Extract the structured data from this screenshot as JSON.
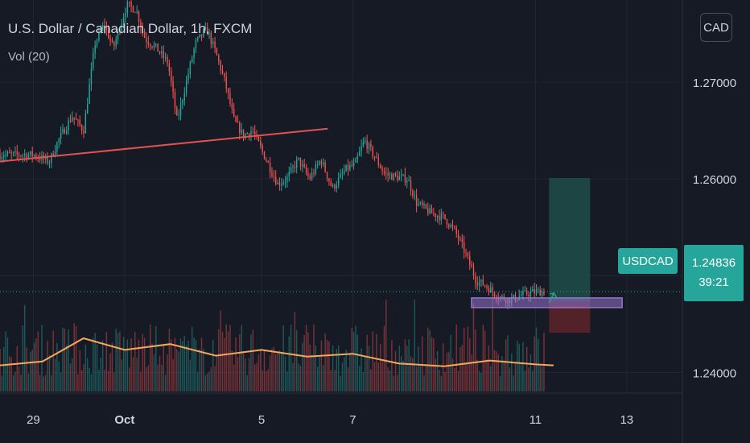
{
  "header": {
    "title": "U.S. Dollar / Canadian Dollar, 1h, FXCM",
    "volume_indicator": "Vol (20)",
    "currency_button": "CAD"
  },
  "price_marker": {
    "ticker": "USDCAD",
    "price": "1.24836",
    "countdown": "39:21"
  },
  "colors": {
    "background": "#161a25",
    "grid": "#232632",
    "up": "#26a69a",
    "down": "#ef5350",
    "trendline": "#e05353",
    "volume_ma": "#f5a85b",
    "support_zone": "#9575cd",
    "target_zone": "#1f4d4a",
    "stop_zone": "#5a2329"
  },
  "chart_data": {
    "type": "candlestick",
    "symbol": "USDCAD",
    "interval": "1h",
    "source": "FXCM",
    "currency": "CAD",
    "y_ticks": [
      "1.27000",
      "1.26000",
      "1.25000",
      "1.24000"
    ],
    "ylim": [
      1.2327,
      1.2785
    ],
    "x_ticks": [
      "29",
      "Oct",
      "5",
      "7",
      "11",
      "13"
    ],
    "x_range_days": [
      -0.73,
      14.22
    ],
    "last_price": 1.24836,
    "price_path_keyframes": [
      [
        0.0,
        1.2625
      ],
      [
        0.35,
        1.2618
      ],
      [
        0.55,
        1.264
      ],
      [
        0.85,
        1.2665
      ],
      [
        1.1,
        1.265
      ],
      [
        1.35,
        1.274
      ],
      [
        1.55,
        1.276
      ],
      [
        1.75,
        1.2735
      ],
      [
        2.05,
        1.278
      ],
      [
        2.25,
        1.2775
      ],
      [
        2.45,
        1.2745
      ],
      [
        2.7,
        1.2735
      ],
      [
        2.95,
        1.272
      ],
      [
        3.15,
        1.266
      ],
      [
        3.35,
        1.27
      ],
      [
        3.55,
        1.274
      ],
      [
        3.8,
        1.2755
      ],
      [
        4.0,
        1.273
      ],
      [
        4.2,
        1.27
      ],
      [
        4.4,
        1.266
      ],
      [
        4.6,
        1.2645
      ],
      [
        4.8,
        1.265
      ],
      [
        5.1,
        1.262
      ],
      [
        5.35,
        1.2595
      ],
      [
        5.55,
        1.26
      ],
      [
        5.8,
        1.262
      ],
      [
        6.05,
        1.26
      ],
      [
        6.3,
        1.262
      ],
      [
        6.55,
        1.259
      ],
      [
        6.85,
        1.261
      ],
      [
        7.05,
        1.2615
      ],
      [
        7.25,
        1.264
      ],
      [
        7.45,
        1.2625
      ],
      [
        7.7,
        1.2605
      ],
      [
        7.95,
        1.2602
      ],
      [
        8.2,
        1.26
      ],
      [
        8.4,
        1.2575
      ],
      [
        8.7,
        1.2565
      ],
      [
        9.0,
        1.256
      ],
      [
        9.25,
        1.2545
      ],
      [
        9.45,
        1.2525
      ],
      [
        9.7,
        1.2495
      ],
      [
        9.9,
        1.249
      ],
      [
        10.2,
        1.2478
      ],
      [
        10.45,
        1.2475
      ],
      [
        10.7,
        1.248
      ],
      [
        10.95,
        1.2483
      ],
      [
        11.2,
        1.24836
      ]
    ],
    "trendline": {
      "from": [
        -0.73,
        1.2618
      ],
      "to": [
        6.45,
        1.2652
      ]
    },
    "support_zone": {
      "x_from": 9.6,
      "x_to": 12.9,
      "y_low": 1.2467,
      "y_high": 1.2477
    },
    "long_position": {
      "x_from": 11.3,
      "x_to": 12.2,
      "target": 1.2601,
      "entry": 1.2473,
      "stop": 1.2441
    },
    "volume_ma_level": 0.45,
    "volume_ma_series": [
      [
        -0.73,
        0.27
      ],
      [
        0.2,
        0.31
      ],
      [
        1.1,
        0.55
      ],
      [
        2.0,
        0.43
      ],
      [
        3.0,
        0.49
      ],
      [
        4.0,
        0.37
      ],
      [
        5.0,
        0.43
      ],
      [
        6.0,
        0.36
      ],
      [
        7.0,
        0.39
      ],
      [
        8.0,
        0.29
      ],
      [
        9.0,
        0.26
      ],
      [
        10.0,
        0.32
      ],
      [
        11.0,
        0.28
      ],
      [
        11.4,
        0.27
      ]
    ]
  }
}
